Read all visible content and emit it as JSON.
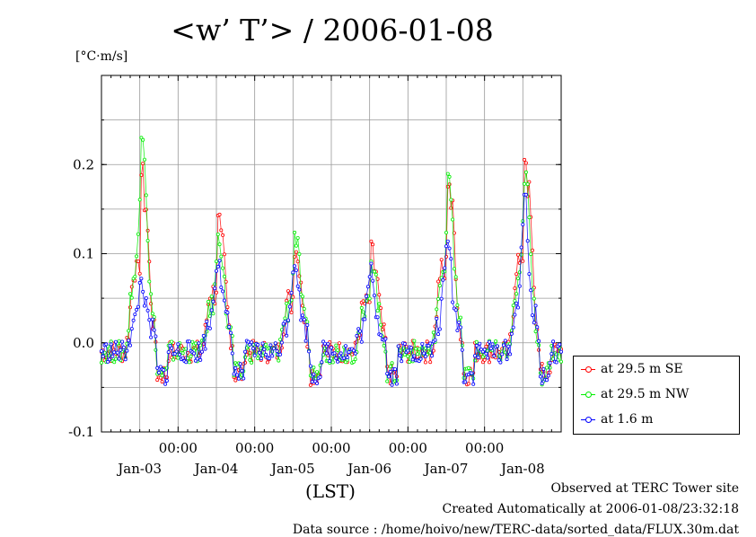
{
  "title": "<w’ T’> / 2006-01-08",
  "unit_label": "[°C·m/s]",
  "footer": {
    "observed": "Observed at TERC Tower site",
    "created": "Created Automatically at 2006-01-08/23:32:18",
    "source": "Data source : /home/hoivo/new/TERC-data/sorted_data/FLUX.30m.dat"
  },
  "chart_data": {
    "type": "line",
    "title": "<w’ T’> / 2006-01-08",
    "xlabel": "(LST)",
    "ylabel": "[°C·m/s]",
    "xlim": [
      0,
      6
    ],
    "ylim": [
      -0.1,
      0.3
    ],
    "yticks": [
      -0.1,
      0.0,
      0.1,
      0.2
    ],
    "ytick_labels": [
      "-0.1",
      "0.0",
      "0.1",
      "0.2"
    ],
    "xticks": [
      1,
      2,
      3,
      4,
      5
    ],
    "xtick_labels": [
      "00:00",
      "00:00",
      "00:00",
      "00:00",
      "00:00"
    ],
    "day_labels": [
      {
        "x": 0.5,
        "label": "Jan-03"
      },
      {
        "x": 1.5,
        "label": "Jan-04"
      },
      {
        "x": 2.5,
        "label": "Jan-05"
      },
      {
        "x": 3.5,
        "label": "Jan-06"
      },
      {
        "x": 4.5,
        "label": "Jan-07"
      },
      {
        "x": 5.5,
        "label": "Jan-08"
      }
    ],
    "grid": true,
    "legend_position": "lower-right-outside",
    "series": [
      {
        "name": "at 29.5 m SE",
        "color": "#ff0000",
        "peaks": [
          0.19,
          0.135,
          0.11,
          0.1,
          0.185,
          0.21
        ],
        "offset": 0
      },
      {
        "name": "at 29.5 m NW",
        "color": "#00ee00",
        "peaks": [
          0.245,
          0.125,
          0.12,
          0.095,
          0.195,
          0.19
        ],
        "offset": 1
      },
      {
        "name": "at 1.6 m",
        "color": "#0000ff",
        "peaks": [
          0.07,
          0.1,
          0.095,
          0.08,
          0.115,
          0.155
        ],
        "offset": 2
      }
    ]
  }
}
